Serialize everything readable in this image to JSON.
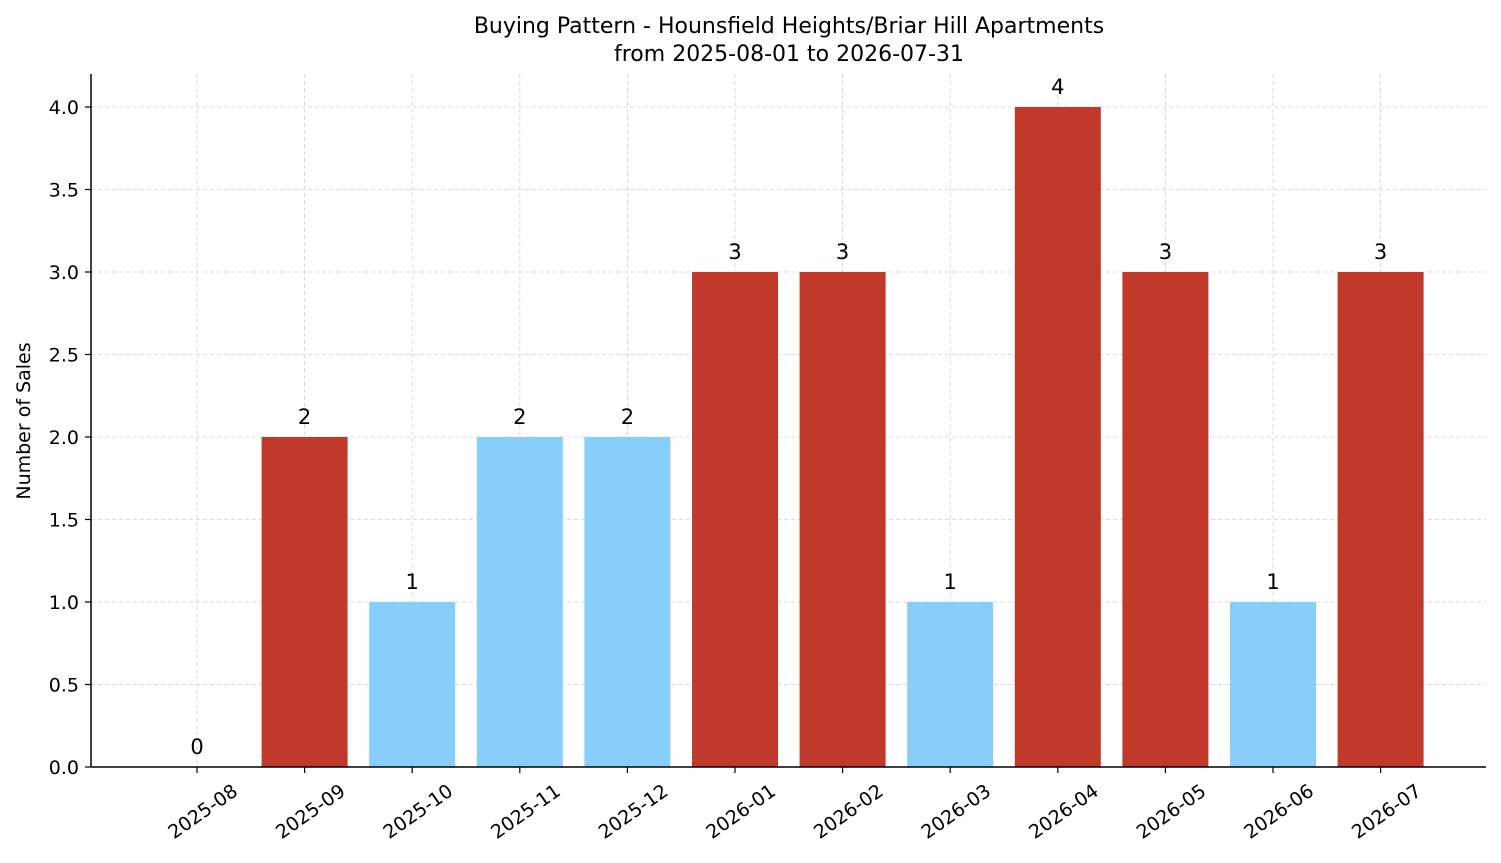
{
  "chart_data": {
    "type": "bar",
    "title": "Buying Pattern - Hounsfield Heights/Briar Hill Apartments",
    "subtitle": "from 2025-08-01 to 2026-07-31",
    "xlabel": "",
    "ylabel": "Number of Sales",
    "categories": [
      "2025-08",
      "2025-09",
      "2025-10",
      "2025-11",
      "2025-12",
      "2026-01",
      "2026-02",
      "2026-03",
      "2026-04",
      "2026-05",
      "2026-06",
      "2026-07"
    ],
    "values": [
      0,
      2,
      1,
      2,
      2,
      3,
      3,
      1,
      4,
      3,
      1,
      3
    ],
    "data_labels": [
      "0",
      "2",
      "1",
      "2",
      "2",
      "3",
      "3",
      "1",
      "4",
      "3",
      "1",
      "3"
    ],
    "bar_colors": [
      "#c0392b",
      "#c0392b",
      "#87cefa",
      "#87cefa",
      "#87cefa",
      "#c0392b",
      "#c0392b",
      "#87cefa",
      "#c0392b",
      "#c0392b",
      "#87cefa",
      "#c0392b"
    ],
    "yticks": [
      0.0,
      0.5,
      1.0,
      1.5,
      2.0,
      2.5,
      3.0,
      3.5,
      4.0
    ],
    "ytick_labels": [
      "0.0",
      "0.5",
      "1.0",
      "1.5",
      "2.0",
      "2.5",
      "3.0",
      "3.5",
      "4.0"
    ],
    "ylim": [
      0,
      4.2
    ],
    "grid": true,
    "legend": "none"
  }
}
